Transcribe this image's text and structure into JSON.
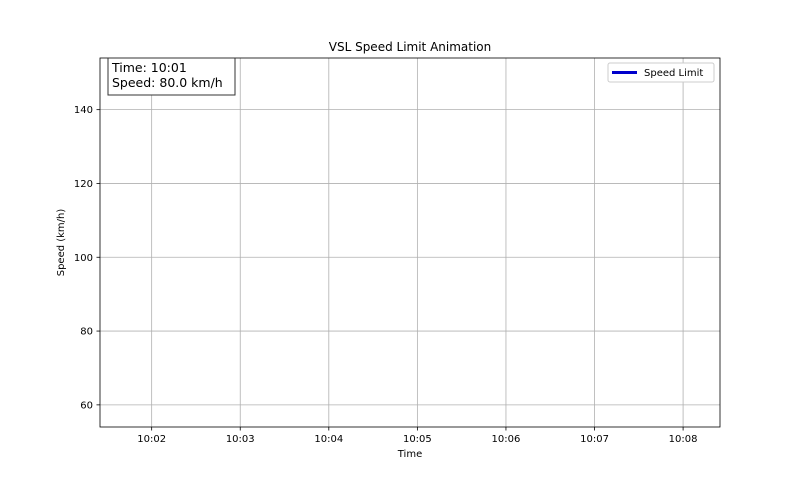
{
  "chart_data": {
    "type": "line",
    "title": "VSL Speed Limit Animation",
    "xlabel": "Time",
    "ylabel": "Speed (km/h)",
    "x_ticks": [
      "10:02",
      "10:03",
      "10:04",
      "10:05",
      "10:06",
      "10:07",
      "10:08"
    ],
    "y_ticks": [
      60,
      80,
      100,
      120,
      140
    ],
    "xlim": [
      "10:01:25",
      "10:08:25"
    ],
    "ylim": [
      54,
      154
    ],
    "grid": true,
    "legend_position": "top-right",
    "series": [
      {
        "name": "Speed Limit",
        "color": "#0000cc",
        "x": [],
        "y": []
      }
    ],
    "annotation": {
      "time_line": "Time: 10:01",
      "speed_line": "Speed: 80.0 km/h",
      "position": "top-left"
    }
  }
}
